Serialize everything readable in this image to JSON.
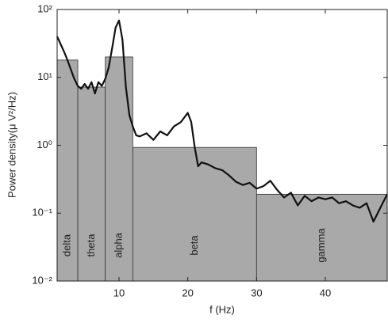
{
  "chart_data": {
    "type": "line",
    "ylog": true,
    "xlabel": "f (Hz)",
    "ylabel": "Power density(μ V²/Hz)",
    "xlim": [
      1,
      49
    ],
    "xticks": [
      10,
      20,
      30,
      40
    ],
    "ylim": [
      0.01,
      100
    ],
    "yticks": [
      {
        "value": 0.01,
        "label": "10⁻²"
      },
      {
        "value": 0.1,
        "label": "10⁻¹"
      },
      {
        "value": 1,
        "label": "10⁰"
      },
      {
        "value": 10,
        "label": "10¹"
      },
      {
        "value": 100,
        "label": "10²"
      }
    ],
    "bands": [
      {
        "name": "delta",
        "range": [
          1,
          4
        ],
        "value": 18
      },
      {
        "name": "theta",
        "range": [
          4,
          8
        ],
        "value": 7.2
      },
      {
        "name": "alpha",
        "range": [
          8,
          12
        ],
        "value": 20
      },
      {
        "name": "beta",
        "range": [
          12,
          30
        ],
        "value": 0.93
      },
      {
        "name": "gamma",
        "range": [
          30,
          49
        ],
        "value": 0.19
      }
    ],
    "band_color": "#a9a9a9",
    "series": [
      {
        "color": "#111111",
        "x": [
          1,
          1.5,
          2,
          2.5,
          3,
          3.5,
          4,
          4.5,
          5,
          5.5,
          6,
          6.5,
          7,
          7.5,
          8,
          8.5,
          9,
          9.5,
          10,
          10.5,
          11,
          11.5,
          12,
          12.5,
          13,
          14,
          15,
          16,
          17,
          18,
          19,
          20,
          20.5,
          21,
          21.5,
          22,
          23,
          24,
          25,
          26,
          27,
          28,
          29,
          30,
          31,
          32,
          33,
          34,
          35,
          36,
          37,
          38,
          39,
          40,
          41,
          42,
          43,
          44,
          45,
          46,
          47,
          48,
          49
        ],
        "values": [
          40,
          31,
          24,
          18,
          13,
          9.5,
          7.5,
          6.8,
          8,
          6.8,
          8.5,
          5.8,
          8.5,
          7.5,
          9.5,
          14,
          27,
          54,
          69,
          36,
          7.2,
          2.8,
          1.9,
          1.4,
          1.35,
          1.5,
          1.2,
          1.6,
          1.4,
          1.9,
          2.2,
          3.0,
          2.2,
          0.95,
          0.49,
          0.56,
          0.52,
          0.46,
          0.43,
          0.36,
          0.29,
          0.26,
          0.28,
          0.23,
          0.25,
          0.3,
          0.22,
          0.17,
          0.2,
          0.13,
          0.18,
          0.15,
          0.17,
          0.16,
          0.17,
          0.14,
          0.15,
          0.13,
          0.12,
          0.14,
          0.075,
          0.12,
          0.19
        ]
      }
    ]
  }
}
